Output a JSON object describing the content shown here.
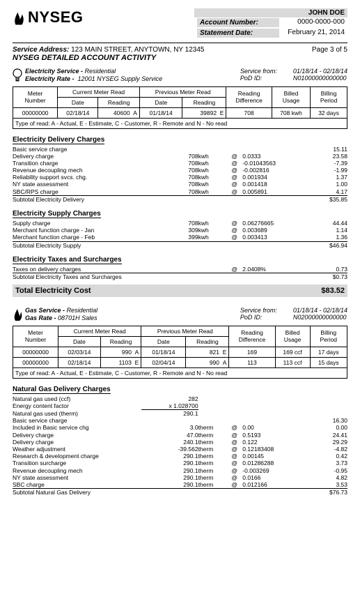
{
  "account": {
    "name": "JOHN DOE",
    "acct_label": "Account Number:",
    "acct_value": "0000-0000-000",
    "stmt_label": "Statement Date:",
    "stmt_value": "February 21, 2014"
  },
  "logo_text": "NYSEG",
  "service_address_label": "Service Address:",
  "service_address": "123 MAIN STREET, ANYTOWN, NY 12345",
  "page_marker": "Page 3 of 5",
  "activity_title": "NYSEG DETAILED ACCOUNT ACTIVITY",
  "elec": {
    "svc_label": "Electricity Service -",
    "svc_type": "Residential",
    "rate_label": "Electricity Rate -",
    "rate_value": "12001 NYSEG Supply Service",
    "svc_from_label": "Service from:",
    "svc_from_value": "01/18/14 - 02/18/14",
    "pod_label": "PoD ID:",
    "pod_value": "N01000000000000",
    "meter_headers": {
      "meter": "Meter\nNumber",
      "cur": "Current Meter Read",
      "prev": "Previous Meter Read",
      "date": "Date",
      "reading": "Reading",
      "diff": "Reading\nDifference",
      "billed": "Billed\nUsage",
      "period": "Billing\nPeriod"
    },
    "meter_rows": [
      {
        "meter": "00000000",
        "cdate": "02/18/14",
        "cread": "40600",
        "cflag": "A",
        "pdate": "01/18/14",
        "pread": "39892",
        "pflag": "E",
        "diff": "708",
        "usage": "708 kwh",
        "period": "32 days"
      }
    ],
    "tor": "Type of read: A - Actual, E - Estimate, C - Customer, R - Remote and N - No read",
    "delivery": {
      "title": "Electricity Delivery Charges",
      "rows": [
        {
          "desc": "Basic service charge",
          "qty": "",
          "unit": "",
          "at": "",
          "rate": "",
          "amt": "15.11"
        },
        {
          "desc": "Delivery charge",
          "qty": "708",
          "unit": "kwh",
          "at": "@",
          "rate": "0.0333",
          "amt": "23.58"
        },
        {
          "desc": "Transition charge",
          "qty": "708",
          "unit": "kwh",
          "at": "@",
          "rate": "-0.01043563",
          "amt": "-7.39"
        },
        {
          "desc": "Revenue decoupling mech",
          "qty": "708",
          "unit": "kwh",
          "at": "@",
          "rate": "-0.002816",
          "amt": "-1.99"
        },
        {
          "desc": "Reliability support svcs. chg.",
          "qty": "708",
          "unit": "kwh",
          "at": "@",
          "rate": "0.001934",
          "amt": "1.37"
        },
        {
          "desc": "NY state assessment",
          "qty": "708",
          "unit": "kwh",
          "at": "@",
          "rate": "0.001418",
          "amt": "1.00"
        },
        {
          "desc": "SBC/RPS charge",
          "qty": "708",
          "unit": "kwh",
          "at": "@",
          "rate": "0.005891",
          "amt": "4.17"
        }
      ],
      "subtotal_label": "Subtotal Electricity Delivery",
      "subtotal": "$35.85"
    },
    "supply": {
      "title": "Electricity Supply Charges",
      "rows": [
        {
          "desc": "Supply charge",
          "qty": "708",
          "unit": "kwh",
          "at": "@",
          "rate": "0.06276665",
          "amt": "44.44"
        },
        {
          "desc": "Merchant function charge - Jan",
          "qty": "309",
          "unit": "kwh",
          "at": "@",
          "rate": "0.003689",
          "amt": "1.14"
        },
        {
          "desc": "Merchant function charge - Feb",
          "qty": "399",
          "unit": "kwh",
          "at": "@",
          "rate": "0.003413",
          "amt": "1.36"
        }
      ],
      "subtotal_label": "Subtotal Electricity Supply",
      "subtotal": "$46.94"
    },
    "taxes": {
      "title": "Electricity Taxes and Surcharges",
      "rows": [
        {
          "desc": "Taxes on delivery charges",
          "qty": "",
          "unit": "",
          "at": "@",
          "rate": "2.0408%",
          "amt": "0.73"
        }
      ],
      "subtotal_label": "Subtotal Electricity Taxes and Surcharges",
      "subtotal": "$0.73"
    },
    "total_label": "Total Electricity Cost",
    "total_value": "$83.52"
  },
  "gas": {
    "svc_label": "Gas Service -",
    "svc_type": "Residential",
    "rate_label": "Gas Rate -",
    "rate_value": "08701H Sales",
    "svc_from_label": "Service from:",
    "svc_from_value": "01/18/14 - 02/18/14",
    "pod_label": "PoD ID:",
    "pod_value": "N02000000000000",
    "meter_rows": [
      {
        "meter": "00000000",
        "cdate": "02/03/14",
        "cread": "990",
        "cflag": "A",
        "pdate": "01/18/14",
        "pread": "821",
        "pflag": "E",
        "diff": "169",
        "usage": "169 ccf",
        "period": "17 days"
      },
      {
        "meter": "00000000",
        "cdate": "02/18/14",
        "cread": "1103",
        "cflag": "E",
        "pdate": "02/04/14",
        "pread": "990",
        "pflag": "A",
        "diff": "113",
        "usage": "113 ccf",
        "period": "15 days"
      }
    ],
    "tor": "Type of read: A - Actual, E - Estimate, C - Customer, R - Remote and N - No read",
    "delivery": {
      "title": "Natural Gas Delivery Charges",
      "conv": [
        {
          "desc": "Natural gas used (ccf)",
          "val": "282"
        },
        {
          "desc": "Energy content factor",
          "val": "x 1.028700"
        },
        {
          "desc": "Natural gas used (therm)",
          "val": "290.1"
        }
      ],
      "rows": [
        {
          "desc": "Basic service charge",
          "qty": "",
          "unit": "",
          "at": "",
          "rate": "",
          "amt": "16.30"
        },
        {
          "desc": "Included in Basic service chg",
          "qty": "3.0",
          "unit": "therm",
          "at": "@",
          "rate": "0.00",
          "amt": "0.00"
        },
        {
          "desc": "Delivery charge",
          "qty": "47.0",
          "unit": "therm",
          "at": "@",
          "rate": "0.5193",
          "amt": "24.41"
        },
        {
          "desc": "Delivery charge",
          "qty": "240.1",
          "unit": "therm",
          "at": "@",
          "rate": "0.122",
          "amt": "29.29"
        },
        {
          "desc": "Weather adjustment",
          "qty": "-39.562",
          "unit": "therm",
          "at": "@",
          "rate": "0.12183408",
          "amt": "-4.82"
        },
        {
          "desc": "Research & development charge",
          "qty": "290.1",
          "unit": "therm",
          "at": "@",
          "rate": "0.00145",
          "amt": "0.42"
        },
        {
          "desc": "Transition surcharge",
          "qty": "290.1",
          "unit": "therm",
          "at": "@",
          "rate": "0.01286288",
          "amt": "3.73"
        },
        {
          "desc": "Revenue decoupling mech",
          "qty": "290.1",
          "unit": "therm",
          "at": "@",
          "rate": "-0.003269",
          "amt": "-0.95"
        },
        {
          "desc": "NY state assessment",
          "qty": "290.1",
          "unit": "therm",
          "at": "@",
          "rate": "0.0166",
          "amt": "4.82"
        },
        {
          "desc": "SBC charge",
          "qty": "290.1",
          "unit": "therm",
          "at": "@",
          "rate": "0.012166",
          "amt": "3.53"
        }
      ],
      "subtotal_label": "Subtotal Natural Gas Delivery",
      "subtotal": "$76.73"
    }
  }
}
